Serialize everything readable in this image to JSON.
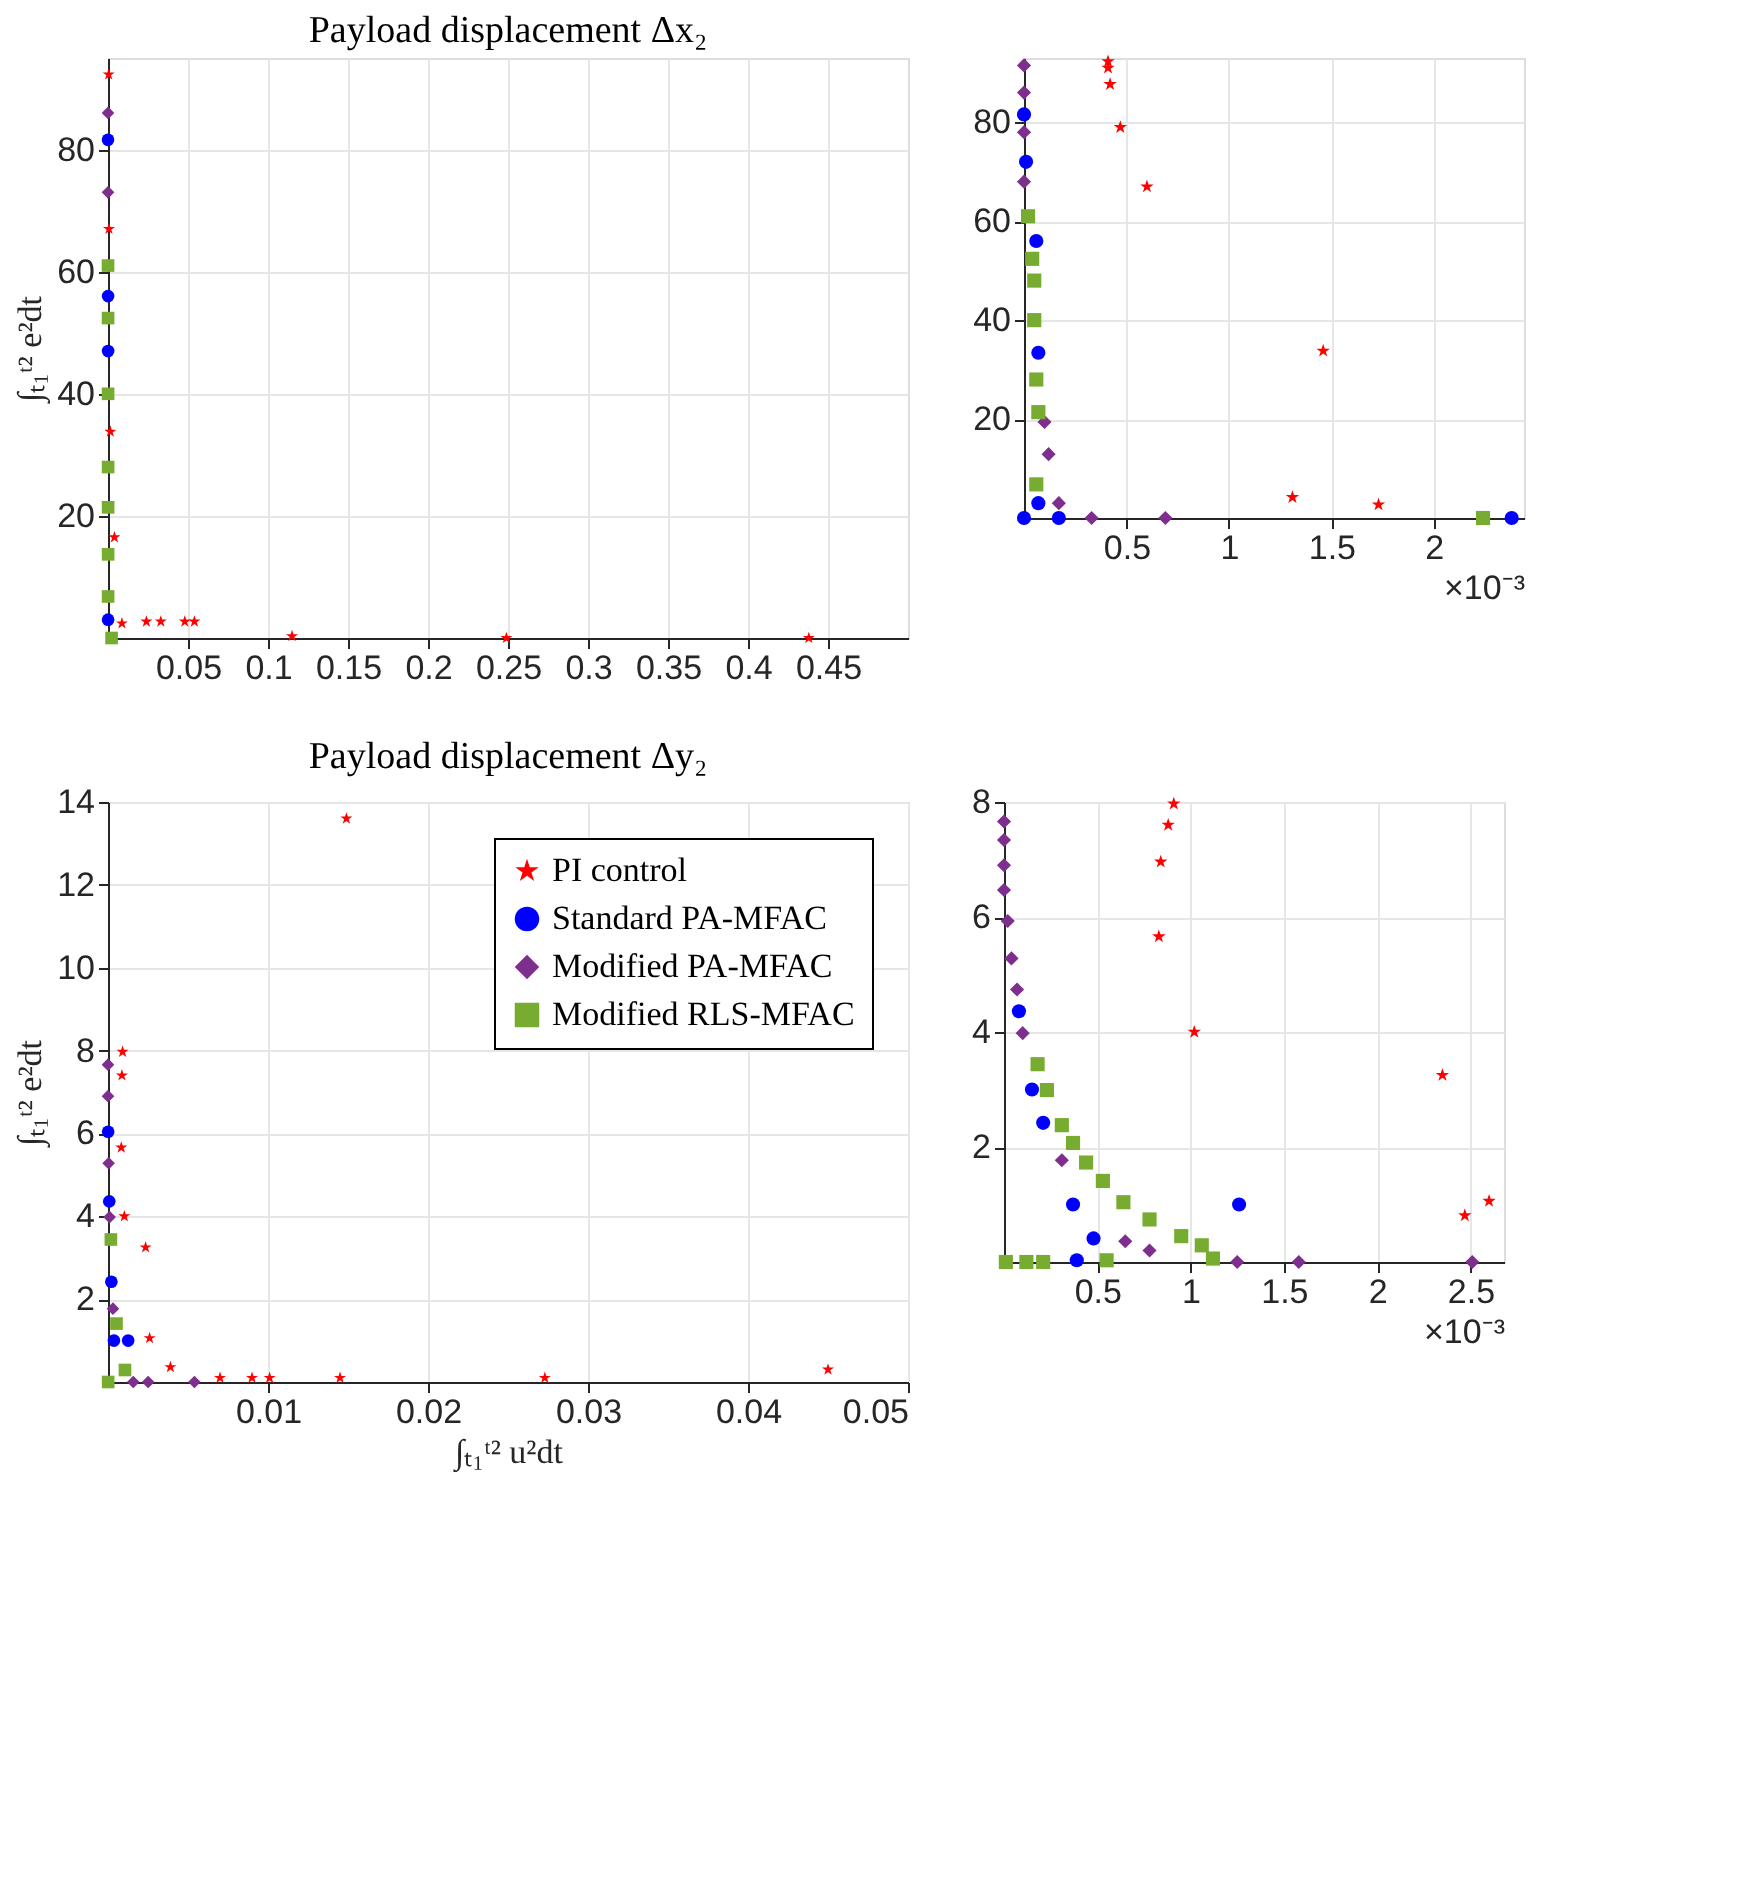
{
  "chart_data": [
    {
      "type": "scatter",
      "title": "Payload displacement Δx₂",
      "ylabel": "∫ₜ₁ᵗ² e²dt",
      "xlim": [
        0,
        0.5
      ],
      "ylim": [
        0,
        95
      ],
      "xticks": [
        0.05,
        0.1,
        0.15,
        0.2,
        0.25,
        0.3,
        0.35,
        0.4,
        0.45
      ],
      "yticks": [
        20,
        40,
        60,
        80
      ],
      "grid": true,
      "series": [
        {
          "color": "#ff0000",
          "marker": "star",
          "x": [
            0.00041,
            0.0006,
            0.00146,
            0.0087,
            0.024,
            0.033,
            0.048,
            0.054,
            0.115,
            0.249,
            0.438,
            0.004
          ],
          "values": [
            92.3,
            67,
            33.8,
            2.4,
            2.7,
            2.7,
            2.7,
            2.7,
            0.3,
            0,
            0,
            16.5
          ]
        },
        {
          "color": "#0000ff",
          "marker": "circle",
          "x": [
            0,
            6e-05,
            7e-05,
            7e-05
          ],
          "values": [
            81.6,
            56,
            47,
            3
          ]
        },
        {
          "color": "#7e2f8e",
          "marker": "diamond",
          "x": [
            0,
            1e-05
          ],
          "values": [
            86,
            73
          ]
        },
        {
          "color": "#77ac30",
          "marker": "square",
          "x": [
            2e-05,
            4e-05,
            5e-05,
            6e-05,
            7e-05,
            7e-05,
            6e-05,
            0.00224
          ],
          "values": [
            61,
            52.4,
            40,
            28,
            21.4,
            13.7,
            6.8,
            0
          ]
        }
      ]
    },
    {
      "type": "scatter",
      "annotations": [
        "×10⁻³"
      ],
      "xlim": [
        0,
        2.44
      ],
      "ylim": [
        0,
        93
      ],
      "xticks": [
        0.5,
        1,
        1.5,
        2
      ],
      "yticks": [
        20,
        40,
        60,
        80
      ],
      "grid": true,
      "series": [
        {
          "color": "#ff0000",
          "marker": "star",
          "x": [
            0.41,
            0.41,
            0.42,
            0.47,
            0.6,
            1.46,
            1.31,
            1.73
          ],
          "values": [
            92.3,
            91,
            87.7,
            79,
            67,
            33.8,
            4.2,
            2.7
          ]
        },
        {
          "color": "#0000ff",
          "marker": "circle",
          "x": [
            0,
            0.01,
            0.06,
            0.07,
            0.07,
            0,
            0.17,
            2.38
          ],
          "values": [
            81.6,
            72,
            56,
            33.4,
            3,
            0,
            0,
            0
          ]
        },
        {
          "color": "#7e2f8e",
          "marker": "diamond",
          "x": [
            0,
            0,
            0,
            0,
            0.1,
            0.12,
            0.17,
            0.33,
            0.69
          ],
          "values": [
            91.5,
            86,
            78,
            68,
            19.4,
            12.9,
            3,
            0,
            0
          ]
        },
        {
          "color": "#77ac30",
          "marker": "square",
          "x": [
            0.02,
            0.04,
            0.05,
            0.05,
            0.06,
            0.07,
            0.06,
            2.24
          ],
          "values": [
            61,
            52.4,
            48,
            40,
            28,
            21.4,
            6.8,
            0
          ]
        }
      ]
    },
    {
      "type": "scatter",
      "title": "Payload displacement Δy₂",
      "xlabel": "∫ₜ₁ᵗ² u²dt",
      "ylabel": "∫ₜ₁ᵗ² e²dt",
      "xlim": [
        0,
        0.05
      ],
      "ylim": [
        0,
        14
      ],
      "xticks": [
        0.01,
        0.02,
        0.03,
        0.04,
        0.05
      ],
      "yticks": [
        2,
        4,
        6,
        8,
        10,
        12,
        14
      ],
      "grid": true,
      "legend": "top right",
      "series": [
        {
          "name": "PI control",
          "color": "#ff0000",
          "marker": "star",
          "x": [
            0.00091,
            0.00087,
            0.00083,
            0.00102,
            0.00235,
            0.0026,
            0.0149,
            0.0039,
            0.007,
            0.009,
            0.0101,
            0.0145,
            0.0273,
            0.045
          ],
          "values": [
            7.97,
            7.4,
            5.66,
            4.0,
            3.25,
            1.06,
            13.6,
            0.36,
            0.1,
            0.1,
            0.1,
            0.1,
            0.1,
            0.3
          ]
        },
        {
          "name": "Standard PA-MFAC",
          "color": "#0000ff",
          "marker": "circle",
          "x": [
            1e-05,
            8e-05,
            0.00021,
            0.00037,
            0.00126
          ],
          "values": [
            6.04,
            4.36,
            2.42,
            1.0,
            1.0
          ]
        },
        {
          "name": "Modified PA-MFAC",
          "color": "#7e2f8e",
          "marker": "diamond",
          "x": [
            0,
            0,
            4e-05,
            0.0001,
            0.00031,
            0.00158,
            0.00251,
            0.0054
          ],
          "values": [
            7.66,
            6.9,
            5.28,
            3.98,
            1.77,
            0,
            0,
            0
          ]
        },
        {
          "name": "Modified RLS-MFAC",
          "color": "#77ac30",
          "marker": "square",
          "x": [
            0.00018,
            0.00053,
            0.00106,
            1e-05
          ],
          "values": [
            3.44,
            1.41,
            0.29,
            0
          ]
        }
      ]
    },
    {
      "type": "scatter",
      "annotations": [
        "×10⁻³"
      ],
      "xlim": [
        0,
        2.68
      ],
      "ylim": [
        0,
        8
      ],
      "xticks": [
        0.5,
        1,
        1.5,
        2,
        2.5
      ],
      "yticks": [
        2,
        4,
        6,
        8
      ],
      "grid": true,
      "series": [
        {
          "color": "#ff0000",
          "marker": "star",
          "x": [
            0.91,
            0.88,
            0.84,
            0.83,
            1.02,
            2.35,
            2.47,
            2.6
          ],
          "values": [
            7.97,
            7.6,
            6.96,
            5.66,
            4.0,
            3.25,
            0.81,
            1.06
          ]
        },
        {
          "color": "#0000ff",
          "marker": "circle",
          "x": [
            0.08,
            0.15,
            0.21,
            0.37,
            0.48,
            0.39,
            1.26
          ],
          "values": [
            4.36,
            3.0,
            2.42,
            1.0,
            0.41,
            0.03,
            1.0
          ]
        },
        {
          "color": "#7e2f8e",
          "marker": "diamond",
          "x": [
            0,
            0,
            0,
            0,
            0.02,
            0.04,
            0.07,
            0.1,
            0.31,
            0.65,
            0.78,
            1.25,
            1.58,
            2.51
          ],
          "values": [
            7.66,
            7.34,
            6.9,
            6.47,
            5.93,
            5.28,
            4.74,
            3.98,
            1.77,
            0.36,
            0.2,
            0,
            0,
            0
          ]
        },
        {
          "color": "#77ac30",
          "marker": "square",
          "x": [
            0.18,
            0.23,
            0.31,
            0.37,
            0.44,
            0.53,
            0.64,
            0.78,
            0.95,
            1.06,
            1.12,
            0.55,
            0.01,
            0.12,
            0.21
          ],
          "values": [
            3.44,
            2.99,
            2.38,
            2.07,
            1.73,
            1.41,
            1.04,
            0.74,
            0.45,
            0.29,
            0.06,
            0.03,
            0,
            0,
            0
          ]
        }
      ]
    }
  ]
}
